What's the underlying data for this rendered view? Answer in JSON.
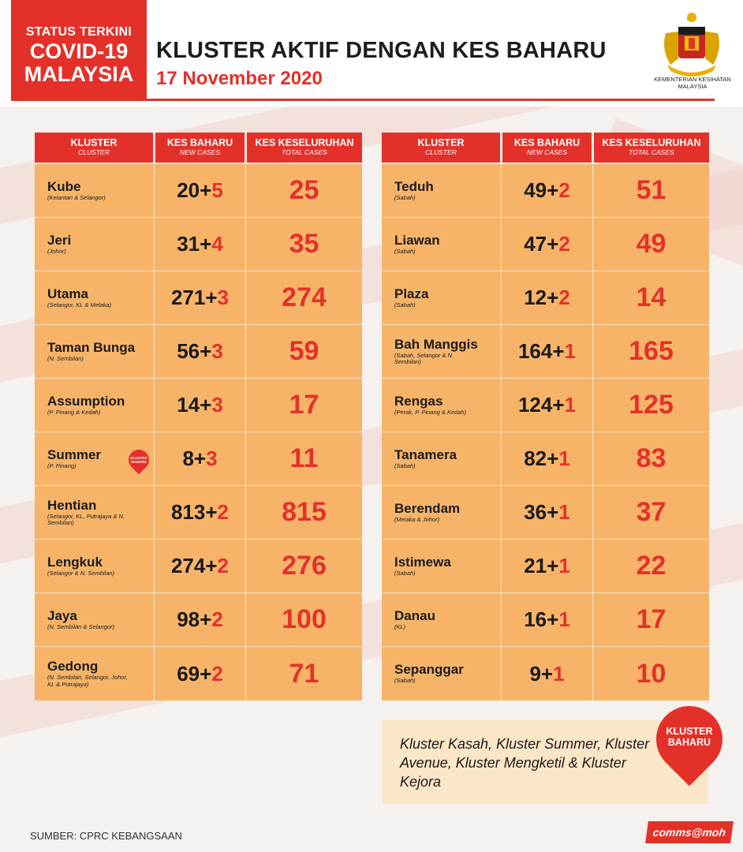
{
  "header": {
    "status_line1": "STATUS TERKINI",
    "status_line2": "COVID-19",
    "status_line3": "MALAYSIA",
    "title": "KLUSTER AKTIF DENGAN KES BAHARU",
    "date": "17 November 2020",
    "ministry": "KEMENTERIAN KESIHATAN MALAYSIA",
    "crest_icon": "malaysia-coat-of-arms-icon"
  },
  "columns": {
    "cluster": "KLUSTER",
    "cluster_sub": "CLUSTER",
    "new": "KES BAHARU",
    "new_sub": "NEW CASES",
    "total": "KES KESELURUHAN",
    "total_sub": "TOTAL CASES"
  },
  "left_rows": [
    {
      "name": "Kube",
      "region": "(Kelantan & Selangor)",
      "base": "20+",
      "add": "5",
      "total": "25"
    },
    {
      "name": "Jeri",
      "region": "(Johor)",
      "base": "31+",
      "add": "4",
      "total": "35"
    },
    {
      "name": "Utama",
      "region": "(Selangor, KL & Melaka)",
      "base": "271+",
      "add": "3",
      "total": "274"
    },
    {
      "name": "Taman Bunga",
      "region": "(N. Sembilan)",
      "base": "56+",
      "add": "3",
      "total": "59"
    },
    {
      "name": "Assumption",
      "region": "(P. Pinang & Kedah)",
      "base": "14+",
      "add": "3",
      "total": "17"
    },
    {
      "name": "Summer",
      "region": "(P. Pinang)",
      "base": "8+",
      "add": "3",
      "total": "11"
    },
    {
      "name": "Hentian",
      "region": "(Selangor, KL, Putrajaya & N. Sembilan)",
      "base": "813+",
      "add": "2",
      "total": "815"
    },
    {
      "name": "Lengkuk",
      "region": "(Selangor & N. Sembilan)",
      "base": "274+",
      "add": "2",
      "total": "276"
    },
    {
      "name": "Jaya",
      "region": "(N. Sembilan & Selangor)",
      "base": "98+",
      "add": "2",
      "total": "100"
    },
    {
      "name": "Gedong",
      "region": "(N. Sembilan, Selangor, Johor, KL & Putrajaya)",
      "base": "69+",
      "add": "2",
      "total": "71"
    }
  ],
  "right_rows": [
    {
      "name": "Teduh",
      "region": "(Sabah)",
      "base": "49+",
      "add": "2",
      "total": "51"
    },
    {
      "name": "Liawan",
      "region": "(Sabah)",
      "base": "47+",
      "add": "2",
      "total": "49"
    },
    {
      "name": "Plaza",
      "region": "(Sabah)",
      "base": "12+",
      "add": "2",
      "total": "14"
    },
    {
      "name": "Bah Manggis",
      "region": "(Sabah, Selangor & N. Sembilan)",
      "base": "164+",
      "add": "1",
      "total": "165"
    },
    {
      "name": "Rengas",
      "region": "(Perak, P. Pinang & Kedah)",
      "base": "124+",
      "add": "1",
      "total": "125"
    },
    {
      "name": "Tanamera",
      "region": "(Sabah)",
      "base": "82+",
      "add": "1",
      "total": "83"
    },
    {
      "name": "Berendam",
      "region": "(Melaka & Johor)",
      "base": "36+",
      "add": "1",
      "total": "37"
    },
    {
      "name": "Istimewa",
      "region": "(Sabah)",
      "base": "21+",
      "add": "1",
      "total": "22"
    },
    {
      "name": "Danau",
      "region": "(KL)",
      "base": "16+",
      "add": "1",
      "total": "17"
    },
    {
      "name": "Sepanggar",
      "region": "(Sabah)",
      "base": "9+",
      "add": "1",
      "total": "10"
    }
  ],
  "badge": {
    "line1": "KLUSTER",
    "line2": "BAHARU"
  },
  "note": "Kluster Kasah, Kluster Summer, Kluster Avenue, Kluster Mengketil & Kluster Kejora",
  "source": "SUMBER: CPRC KEBANGSAAN",
  "comms": "comms@moh",
  "colors": {
    "red": "#e3312a",
    "orange": "#f7b469",
    "cream": "#fbe6c8"
  }
}
